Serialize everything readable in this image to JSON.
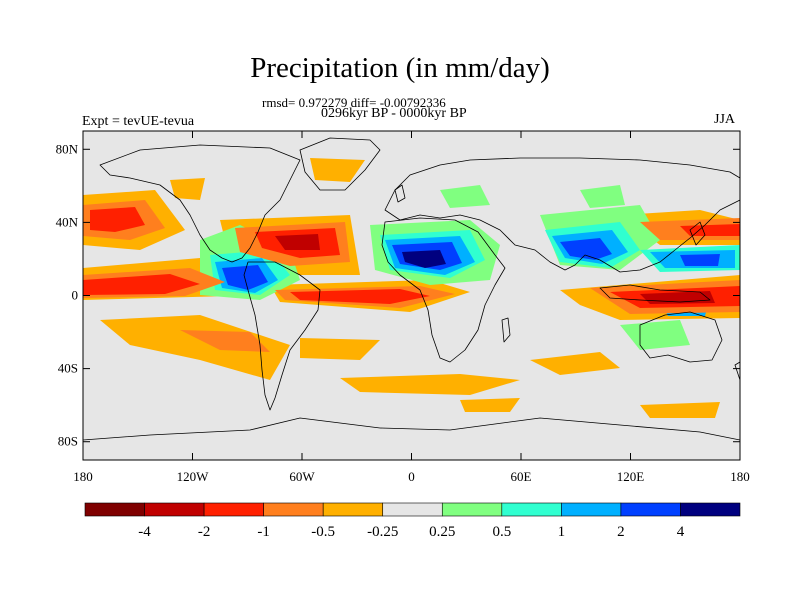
{
  "title": "Precipitation (in mm/day)",
  "stats": "rmsd= 0.972279 diff= -0.00792336",
  "period": "0296kyr BP - 0000kyr BP",
  "experiment": "Expt = tevUE-tevua",
  "season": "JJA",
  "lat_ticks": [
    {
      "label": "80N",
      "lat": 80
    },
    {
      "label": "40N",
      "lat": 40
    },
    {
      "label": "0",
      "lat": 0
    },
    {
      "label": "40S",
      "lat": -40
    },
    {
      "label": "80S",
      "lat": -80
    }
  ],
  "lon_ticks": [
    {
      "label": "180",
      "lon": -180
    },
    {
      "label": "120W",
      "lon": -120
    },
    {
      "label": "60W",
      "lon": -60
    },
    {
      "label": "0",
      "lon": 0
    },
    {
      "label": "60E",
      "lon": 60
    },
    {
      "label": "120E",
      "lon": 120
    },
    {
      "label": "180",
      "lon": 180
    }
  ],
  "colorbar": {
    "colors": [
      "#7f0000",
      "#c00000",
      "#ff2000",
      "#ff7f1e",
      "#ffb000",
      "#e6e6e6",
      "#80ff80",
      "#30ffd0",
      "#00b0ff",
      "#0040ff",
      "#00007f"
    ],
    "labels": [
      "-4",
      "-2",
      "-1",
      "-0.5",
      "-0.25",
      "0.25",
      "0.5",
      "1",
      "2",
      "4"
    ]
  },
  "colors": {
    "background": "#e6e6e6",
    "coast": "#000000"
  }
}
